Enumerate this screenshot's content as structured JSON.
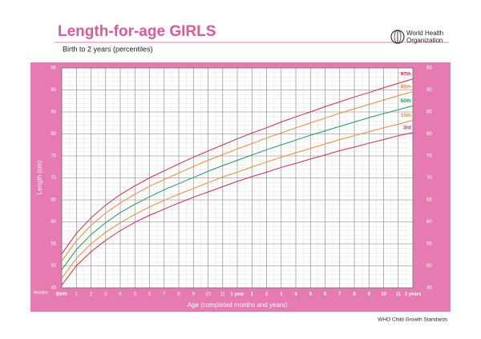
{
  "chart_data": {
    "type": "line",
    "title": "Length-for-age GIRLS",
    "subtitle": "Birth to 2 years (percentiles)",
    "organization": [
      "World Health",
      "Organization"
    ],
    "source": "WHO Child Growth Standards",
    "x_label": "Age (completed months and years)",
    "x_unit_label": "Months",
    "y_label": "Length (cm)",
    "x": [
      0,
      1,
      2,
      3,
      4,
      5,
      6,
      7,
      8,
      9,
      10,
      11,
      12,
      13,
      14,
      15,
      16,
      17,
      18,
      19,
      20,
      21,
      22,
      23,
      24
    ],
    "xlim": [
      0,
      24
    ],
    "xticks": [
      {
        "value": 0,
        "label": "Birth"
      },
      1,
      2,
      3,
      4,
      5,
      6,
      7,
      8,
      9,
      10,
      11,
      {
        "value": 12,
        "label": "1 year"
      },
      {
        "value": 13,
        "label": "1"
      },
      {
        "value": 14,
        "label": "2"
      },
      {
        "value": 15,
        "label": "3"
      },
      {
        "value": 16,
        "label": "4"
      },
      {
        "value": 17,
        "label": "5"
      },
      {
        "value": 18,
        "label": "6"
      },
      {
        "value": 19,
        "label": "7"
      },
      {
        "value": 20,
        "label": "8"
      },
      {
        "value": 21,
        "label": "9"
      },
      {
        "value": 22,
        "label": "10"
      },
      {
        "value": 23,
        "label": "11"
      },
      {
        "value": 24,
        "label": "2 years"
      }
    ],
    "ylim": [
      45,
      95
    ],
    "yticks": [
      45,
      50,
      55,
      60,
      65,
      70,
      75,
      80,
      85,
      90,
      95
    ],
    "grid": true,
    "series": [
      {
        "name": "97th",
        "color": "#d62a45",
        "values": [
          52.7,
          57.4,
          60.9,
          63.8,
          66.2,
          68.2,
          70.0,
          71.6,
          73.2,
          74.7,
          76.1,
          77.5,
          78.9,
          80.2,
          81.4,
          82.7,
          83.9,
          85.0,
          86.2,
          87.3,
          88.4,
          89.4,
          90.5,
          91.5,
          92.5
        ]
      },
      {
        "name": "85th",
        "color": "#f08a2c",
        "values": [
          51.1,
          55.7,
          59.2,
          62.0,
          64.3,
          66.3,
          68.1,
          69.6,
          71.1,
          72.6,
          74.0,
          75.3,
          76.6,
          77.8,
          79.1,
          80.2,
          81.4,
          82.5,
          83.6,
          84.7,
          85.7,
          86.7,
          87.7,
          88.7,
          89.6
        ]
      },
      {
        "name": "50th",
        "color": "#1a9a5a",
        "values": [
          49.1,
          53.7,
          57.1,
          59.8,
          62.1,
          64.0,
          65.7,
          67.3,
          68.7,
          70.1,
          71.5,
          72.8,
          74.0,
          75.2,
          76.4,
          77.5,
          78.6,
          79.7,
          80.7,
          81.7,
          82.7,
          83.7,
          84.6,
          85.5,
          86.4
        ]
      },
      {
        "name": "15th",
        "color": "#f08a2c",
        "values": [
          47.2,
          51.7,
          55.0,
          57.6,
          59.8,
          61.7,
          63.4,
          64.9,
          66.3,
          67.6,
          68.9,
          70.2,
          71.3,
          72.5,
          73.6,
          74.7,
          75.7,
          76.7,
          77.7,
          78.7,
          79.6,
          80.5,
          81.4,
          82.2,
          83.1
        ]
      },
      {
        "name": "3rd",
        "color": "#d62a45",
        "values": [
          45.6,
          50.0,
          53.2,
          55.8,
          58.0,
          59.9,
          61.5,
          62.9,
          64.3,
          65.6,
          66.8,
          68.0,
          69.2,
          70.3,
          71.3,
          72.4,
          73.3,
          74.3,
          75.2,
          76.2,
          77.0,
          77.9,
          78.7,
          79.6,
          80.3
        ]
      }
    ]
  }
}
